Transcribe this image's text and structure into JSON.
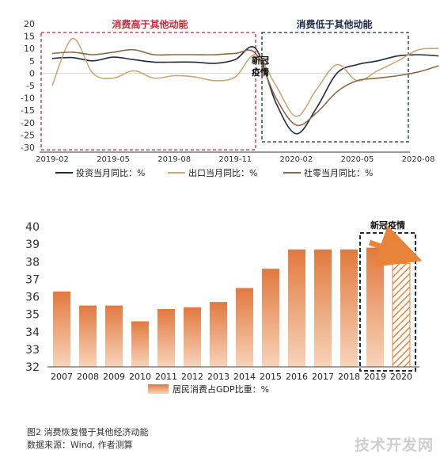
{
  "colors": {
    "investment": "#1f2d3d",
    "export": "#c9a978",
    "retail": "#8c6a48",
    "bar_top": "#e2793f",
    "bar_bottom": "#f7d4ba",
    "red_box": "#c8283c",
    "navy_box": "#1e2a4a",
    "arrow": "#e8833a"
  },
  "chart_data": [
    {
      "type": "line",
      "title": "",
      "xlabel": "",
      "ylabel": "",
      "ylim": [
        -30,
        20
      ],
      "yticks": [
        20,
        15,
        10,
        5,
        0,
        -5,
        -10,
        -15,
        -20,
        -25,
        -30
      ],
      "x_tick_labels": [
        "2019-02",
        "2019-05",
        "2019-08",
        "2019-11",
        "2020-02",
        "2020-05",
        "2020-08"
      ],
      "x": [
        "2019-02",
        "2019-03",
        "2019-04",
        "2019-05",
        "2019-06",
        "2019-07",
        "2019-08",
        "2019-09",
        "2019-10",
        "2019-11",
        "2019-12",
        "2020-01",
        "2020-02",
        "2020-03",
        "2020-04",
        "2020-05",
        "2020-06",
        "2020-07",
        "2020-08",
        "2020-09"
      ],
      "series": [
        {
          "name": "投资当月同比：%",
          "color_key": "investment",
          "values": [
            6.0,
            6.3,
            5.0,
            6.5,
            5.5,
            4.5,
            4.5,
            4.5,
            4.0,
            5.5,
            10.0,
            -12,
            -24.5,
            -14,
            0,
            3.5,
            5.0,
            7.0,
            7.5,
            7.0
          ]
        },
        {
          "name": "出口当月同比：%",
          "color_key": "export",
          "values": [
            -5.0,
            14.0,
            0.0,
            -2.0,
            1.0,
            -2.0,
            -1.0,
            -1.5,
            -3.0,
            -1.5,
            7.5,
            -5,
            -17.5,
            -6.5,
            3.5,
            -3.0,
            1.0,
            5.0,
            9.5,
            10.0
          ]
        },
        {
          "name": "社零当月同比：%",
          "color_key": "retail",
          "values": [
            8.0,
            8.5,
            7.5,
            8.5,
            9.5,
            7.5,
            7.5,
            7.5,
            7.5,
            8.0,
            8.0,
            -10,
            -21.0,
            -16,
            -7.5,
            -3.0,
            -2.0,
            -1.0,
            0.5,
            3.0
          ]
        }
      ],
      "annotations": {
        "left_box": "消费高于其他动能",
        "right_box": "消费低于其他动能",
        "event": [
          "新冠",
          "疫情"
        ]
      }
    },
    {
      "type": "bar",
      "title": "",
      "xlabel": "",
      "ylabel": "",
      "ylim": [
        32,
        40
      ],
      "yticks": [
        40,
        39,
        38,
        37,
        36,
        35,
        34,
        33,
        32
      ],
      "categories": [
        "2007",
        "2008",
        "2009",
        "2010",
        "2011",
        "2012",
        "2013",
        "2014",
        "2015",
        "2016",
        "2017",
        "2018",
        "2019",
        "2020"
      ],
      "series": [
        {
          "name": "居民消费占GDP比重：%",
          "values": [
            36.3,
            35.5,
            35.5,
            34.6,
            35.3,
            35.4,
            35.7,
            36.5,
            37.6,
            38.7,
            38.7,
            38.7,
            38.8,
            37.9
          ]
        }
      ],
      "annotations": {
        "box_label": "新冠疫情",
        "hatched_category": "2020"
      }
    }
  ],
  "caption": {
    "title": "图2 消费恢复慢于其他经济动能",
    "source": "数据来源：Wind, 作者测算"
  },
  "watermark": "技术开发网"
}
